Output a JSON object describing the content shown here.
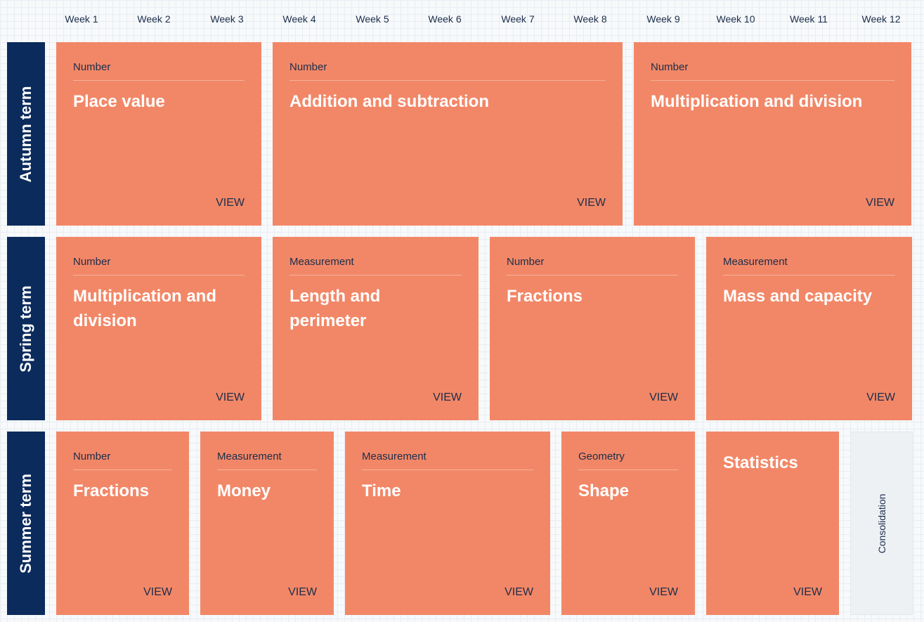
{
  "weeks": [
    "Week 1",
    "Week 2",
    "Week 3",
    "Week 4",
    "Week 5",
    "Week 6",
    "Week 7",
    "Week 8",
    "Week 9",
    "Week 10",
    "Week 11",
    "Week 12"
  ],
  "terms": [
    {
      "label": "Autumn term",
      "blocks": [
        {
          "category": "Number",
          "title": "Place value",
          "action": "VIEW"
        },
        {
          "category": "Number",
          "title": "Addition and subtraction",
          "action": "VIEW"
        },
        {
          "category": "Number",
          "title": "Multiplication and division",
          "action": "VIEW"
        }
      ]
    },
    {
      "label": "Spring term",
      "blocks": [
        {
          "category": "Number",
          "title": "Multiplication and division",
          "action": "VIEW"
        },
        {
          "category": "Measurement",
          "title": "Length and perimeter",
          "action": "VIEW"
        },
        {
          "category": "Number",
          "title": "Fractions",
          "action": "VIEW"
        },
        {
          "category": "Measurement",
          "title": "Mass and capacity",
          "action": "VIEW"
        }
      ]
    },
    {
      "label": "Summer term",
      "blocks": [
        {
          "category": "Number",
          "title": "Fractions",
          "action": "VIEW"
        },
        {
          "category": "Measurement",
          "title": "Money",
          "action": "VIEW"
        },
        {
          "category": "Measurement",
          "title": "Time",
          "action": "VIEW"
        },
        {
          "category": "Geometry",
          "title": "Shape",
          "action": "VIEW"
        },
        {
          "category": "",
          "title": "Statistics",
          "action": "VIEW"
        }
      ],
      "consolidation": "Consolidation"
    }
  ],
  "colors": {
    "term_bar": "#0b2b5c",
    "block": "#f28767",
    "consolidation": "#eef1f4"
  }
}
